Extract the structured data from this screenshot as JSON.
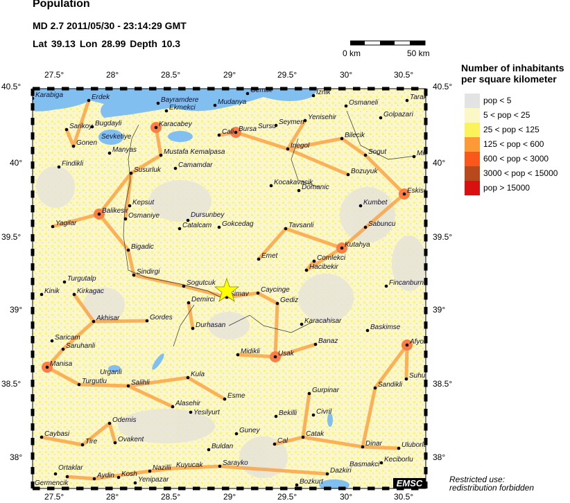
{
  "header": {
    "title": "Population",
    "event": "MD 2.7  2011/05/30 - 23:14:29 GMT",
    "location": "Lat 39.13    Lon  28.99    Depth  10.3"
  },
  "scale_bar": {
    "start": "0 km",
    "end": "50 km"
  },
  "axes": {
    "lon_ticks": [
      "27.5°",
      "28°",
      "28.5°",
      "29°",
      "29.5°",
      "30°",
      "30.5°"
    ],
    "lat_ticks": [
      "40.5°",
      "40°",
      "39.5°",
      "39°",
      "38.5°",
      "38°"
    ]
  },
  "legend": {
    "title_line1": "Number of inhabitants",
    "title_line2": "per square kilometer",
    "items": [
      {
        "label": "pop < 5",
        "color": "#e3e3e3"
      },
      {
        "label": "5 < pop < 25",
        "color": "#fbf7c6"
      },
      {
        "label": "25 < pop < 125",
        "color": "#fbf35c"
      },
      {
        "label": "125 < pop < 600",
        "color": "#fb9a36"
      },
      {
        "label": "600 < pop < 3000",
        "color": "#fb561c"
      },
      {
        "label": "3000 < pop < 15000",
        "color": "#b8491c"
      },
      {
        "label": "pop > 15000",
        "color": "#d81010"
      }
    ]
  },
  "epicenter": {
    "lat": 39.13,
    "lon": 28.99,
    "marker": "star-icon",
    "color": "#ffff00"
  },
  "cities": [
    "Karabiga",
    "Erdek",
    "Bayramdere",
    "Ekmekci",
    "Gemlik",
    "Iznik",
    "Mudanya",
    "Tarak",
    "Osmaneli",
    "Golpazari",
    "Sarikoy",
    "Bugdayli",
    "Karacabey",
    "Cali",
    "Bursa",
    "Sursu",
    "Seymen",
    "Yenisehir",
    "Sevketiye",
    "Gonen",
    "Manyas",
    "Mustafa Kemalpasa",
    "Inegol",
    "Bilecik",
    "Sogut",
    "Mih",
    "Findikli",
    "Susurluk",
    "Camamdar",
    "Bozuyuk",
    "Kocakavacik",
    "Domanic",
    "Eskisehir",
    "Kumbet",
    "Kepsut",
    "Balikesir",
    "Osmaniye",
    "Dursunbey",
    "Catalcam",
    "Gokcedag",
    "Tavsanli",
    "Sabuncu",
    "Yagilar",
    "Kutahya",
    "Bigadic",
    "Emet",
    "Comlekci",
    "Sindirgi",
    "Hacibekir",
    "Turgutalp",
    "Sogutcuk",
    "Fincanburn",
    "Simav",
    "Caycinge",
    "Kirkagac",
    "Kinik",
    "Demirci",
    "Gediz",
    "Akhisar",
    "Gordes",
    "Durhasan",
    "Karacahisar",
    "Baskimse",
    "Saricam",
    "Saruhanli",
    "Banaz",
    "Afyon",
    "Midikli",
    "Usak",
    "Manisa",
    "Turgutlu",
    "Urganli",
    "Salihli",
    "Kula",
    "Suhut",
    "Sandikli",
    "Esme",
    "Gurpinar",
    "Alasehir",
    "Yesilyurt",
    "Civril",
    "Odemis",
    "Bekilli",
    "Caybasi",
    "Tire",
    "Ovakent",
    "Guney",
    "Catak",
    "Buldan",
    "Cal",
    "Dinar",
    "Uluborlu",
    "Ortaklar",
    "Germencik",
    "Aydin",
    "Kosh",
    "Nazilli",
    "Kuyucak",
    "Sarayko",
    "Yenipazar",
    "Dazkiri",
    "Basmakci",
    "Keciborlu",
    "Bozkurt"
  ],
  "footer": {
    "restricted_line1": "Restricted use:",
    "restricted_line2": "redistribution forbidden",
    "logo": "EMSC"
  }
}
